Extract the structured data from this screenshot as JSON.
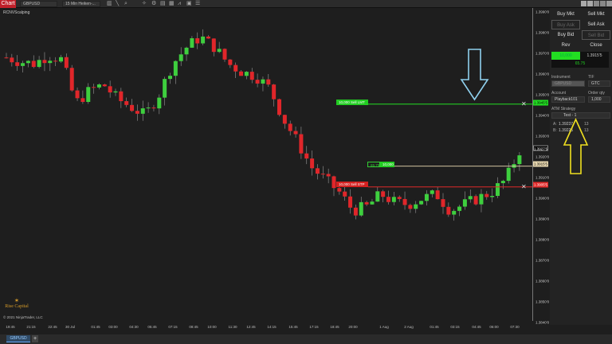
{
  "toolbar": {
    "tab": "Chart",
    "instrument": "GBPUSD",
    "interval": "15 Min Heiken-...",
    "indicator": "RCNVScalping"
  },
  "colors": {
    "up": "#3ecf3e",
    "down": "#e0262a",
    "accent": "#c0202a",
    "sell_limit": "#22dd22",
    "stop": "#e02828",
    "position": "#e8d8b0"
  },
  "price_axis": {
    "labels": [
      "1.3990'0",
      "1.3980'0",
      "1.3970'0",
      "1.3960'0",
      "1.3950'0",
      "1.3940'0",
      "1.3930'0",
      "1.3920'0",
      "1.3910'0",
      "1.3900'0",
      "1.3890'0",
      "1.3880'0",
      "1.3870'0",
      "1.3860'0",
      "1.3850'0",
      "1.3840'0"
    ],
    "values": [
      1.399,
      1.398,
      1.397,
      1.396,
      1.395,
      1.394,
      1.393,
      1.392,
      1.391,
      1.39,
      1.389,
      1.388,
      1.387,
      1.386,
      1.385,
      1.384
    ],
    "last_price": "1.3927'5",
    "sell_limit_price": "1.3945'5",
    "position_price": "1.3915'5",
    "stop_price": "1.3905'5"
  },
  "orders": {
    "sell_limit": "10,000  Sell LMT",
    "stop": "10,000  Sell STP",
    "position_pnl": "65.75",
    "position_qty": "10,000"
  },
  "time_axis": [
    "19:45",
    "21:15",
    "22:45",
    "30 Jul",
    "01:45",
    "03:00",
    "04:30",
    "05:45",
    "07:15",
    "08:45",
    "10:00",
    "11:30",
    "12:45",
    "14:15",
    "15:45",
    "17:15",
    "18:45",
    "20:00",
    "1 Aug",
    "2 Aug",
    "01:45",
    "03:15",
    "04:45",
    "06:00",
    "07:30"
  ],
  "price_path": [
    1.3968,
    1.3966,
    1.3965,
    1.3969,
    1.3967,
    1.3946,
    1.3952,
    1.3955,
    1.3948,
    1.3944,
    1.394,
    1.395,
    1.3965,
    1.3973,
    1.3978,
    1.3973,
    1.3965,
    1.3961,
    1.3959,
    1.3953,
    1.3938,
    1.3927,
    1.3915,
    1.3909,
    1.3903,
    1.3894,
    1.3896,
    1.3902,
    1.3898,
    1.3897,
    1.39,
    1.3902,
    1.3894,
    1.3897,
    1.39,
    1.3903,
    1.3909,
    1.3923
  ],
  "panel": {
    "buy_mkt": "Buy Mkt",
    "sell_mkt": "Sell Mkt",
    "buy_ask": "Buy Ask",
    "sell_ask": "Sell Ask",
    "buy_bid": "Buy Bid",
    "sell_bid": "Sell Bid",
    "rev": "Rev",
    "close": "Close",
    "position_qty": "10,000",
    "position_price": "1.3915'5",
    "pnl": "65.75",
    "instrument_label": "Instrument",
    "instrument": "GBPUSD",
    "tif_label": "TIF",
    "tif": "GTC",
    "account_label": "Account",
    "account": "Playback101",
    "order_qty_label": "Order qty",
    "order_qty": "1,000",
    "atm_label": "ATM Strategy",
    "atm": "Test - 1",
    "rows": [
      {
        "k": "A:",
        "price": "1.39237",
        "n": "13"
      },
      {
        "k": "B:",
        "price": "1.39225",
        "n": "13"
      }
    ]
  },
  "watermark": {
    "logo": "Rise Capital",
    "copyright": "© 2021 NinjaTrader, LLC"
  },
  "bottom": {
    "tab": "GBPUSD",
    "add": "+"
  }
}
